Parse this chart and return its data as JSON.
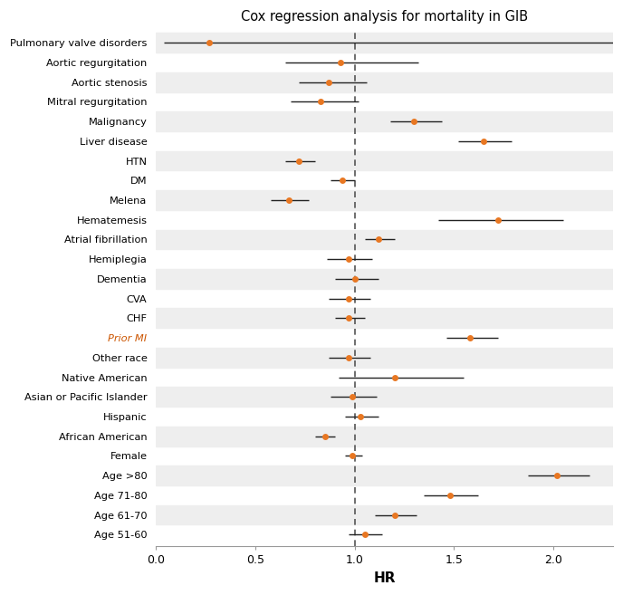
{
  "title": "Cox regression analysis for mortality in GIB",
  "xlabel": "HR",
  "categories": [
    "Pulmonary valve disorders",
    "Aortic regurgitation",
    "Aortic stenosis",
    "Mitral regurgitation",
    "Malignancy",
    "Liver disease",
    "HTN",
    "DM",
    "Melena",
    "Hematemesis",
    "Atrial fibrillation",
    "Hemiplegia",
    "Dementia",
    "CVA",
    "CHF",
    "Prior MI",
    "Other race",
    "Native American",
    "Asian or Pacific Islander",
    "Hispanic",
    "African American",
    "Female",
    "Age >80",
    "Age 71-80",
    "Age 61-70",
    "Age 51-60"
  ],
  "hr": [
    0.27,
    0.93,
    0.87,
    0.83,
    1.3,
    1.65,
    0.72,
    0.94,
    0.67,
    1.72,
    1.12,
    0.97,
    1.0,
    0.97,
    0.97,
    1.58,
    0.97,
    1.2,
    0.99,
    1.03,
    0.85,
    0.99,
    2.02,
    1.48,
    1.2,
    1.05
  ],
  "ci_low": [
    0.04,
    0.65,
    0.72,
    0.68,
    1.18,
    1.52,
    0.65,
    0.88,
    0.58,
    1.42,
    1.05,
    0.86,
    0.9,
    0.87,
    0.9,
    1.46,
    0.87,
    0.92,
    0.88,
    0.95,
    0.8,
    0.95,
    1.87,
    1.35,
    1.1,
    0.97
  ],
  "ci_high": [
    2.3,
    1.32,
    1.06,
    1.02,
    1.44,
    1.79,
    0.8,
    1.0,
    0.77,
    2.05,
    1.2,
    1.09,
    1.12,
    1.08,
    1.05,
    1.72,
    1.08,
    1.55,
    1.11,
    1.12,
    0.9,
    1.04,
    2.18,
    1.62,
    1.31,
    1.14
  ],
  "dot_color": "#E87722",
  "line_color": "#222222",
  "dashed_line_color": "#555555",
  "dashed_line_x": 1.0,
  "xlim": [
    0.0,
    2.3
  ],
  "xticks": [
    0.0,
    0.5,
    1.0,
    1.5,
    2.0
  ],
  "background_color": "#ffffff",
  "row_stripe_color": "#eeeeee",
  "prior_mi_color": "#CC5500",
  "prior_mi_fontsize": 14
}
